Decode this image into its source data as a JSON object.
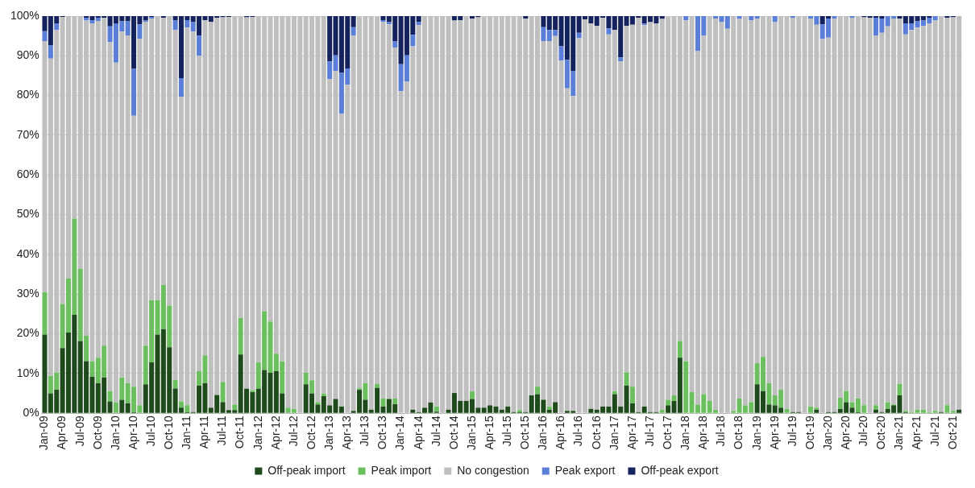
{
  "chart_data": {
    "type": "bar",
    "stacked": true,
    "legend": "bottom",
    "grid": "y",
    "categories": [
      "Jan-09",
      null,
      null,
      "Apr-09",
      null,
      null,
      "Jul-09",
      null,
      null,
      "Oct-09",
      null,
      null,
      "Jan-10",
      null,
      null,
      "Apr-10",
      null,
      null,
      "Jul-10",
      null,
      null,
      "Oct-10",
      null,
      null,
      "Jan-11",
      null,
      null,
      "Apr-11",
      null,
      null,
      "Jul-11",
      null,
      null,
      "Oct-11",
      null,
      null,
      "Jan-12",
      null,
      null,
      "Apr-12",
      null,
      null,
      "Jul-12",
      null,
      null,
      "Oct-12",
      null,
      null,
      "Jan-13",
      null,
      null,
      "Apr-13",
      null,
      null,
      "Jul-13",
      null,
      null,
      "Oct-13",
      null,
      null,
      "Jan-14",
      null,
      null,
      "Apr-14",
      null,
      null,
      "Jul-14",
      null,
      null,
      "Oct-14",
      null,
      null,
      "Jan-15",
      null,
      null,
      "Apr-15",
      null,
      null,
      "Jul-15",
      null,
      null,
      "Oct-15",
      null,
      null,
      "Jan-16",
      null,
      null,
      "Apr-16",
      null,
      null,
      "Jul-16",
      null,
      null,
      "Oct-16",
      null,
      null,
      "Jan-17",
      null,
      null,
      "Apr-17",
      null,
      null,
      "Jul-17",
      null,
      null,
      "Oct-17",
      null,
      null,
      "Jan-18",
      null,
      null,
      "Apr-18",
      null,
      null,
      "Jul-18",
      null,
      null,
      "Oct-18",
      null,
      null,
      "Jan-19",
      null,
      null,
      "Apr-19",
      null,
      null,
      "Jul-19",
      null,
      null,
      "Oct-19",
      null,
      null,
      "Jan-20",
      null,
      null,
      "Apr-20",
      null,
      null,
      "Jul-20",
      null,
      null,
      "Oct-20",
      null,
      null,
      "Jan-21",
      null,
      null,
      "Apr-21",
      null,
      null,
      "Jul-21",
      null,
      null,
      "Oct-21",
      null
    ],
    "ylim": [
      0,
      100
    ],
    "yticks": [
      {
        "value": 0,
        "label": "0%"
      },
      {
        "value": 10,
        "label": "10%"
      },
      {
        "value": 20,
        "label": "20%"
      },
      {
        "value": 30,
        "label": "30%"
      },
      {
        "value": 40,
        "label": "40%"
      },
      {
        "value": 50,
        "label": "50%"
      },
      {
        "value": 60,
        "label": "60%"
      },
      {
        "value": 70,
        "label": "70%"
      },
      {
        "value": 80,
        "label": "80%"
      },
      {
        "value": 90,
        "label": "90%"
      },
      {
        "value": 100,
        "label": "100%"
      }
    ],
    "series": [
      {
        "name": "Off-peak import",
        "color": "#1f4a1c",
        "values": [
          19.8,
          5,
          5.9,
          16.4,
          20.3,
          24.8,
          18.2,
          13.1,
          9.2,
          7.6,
          9,
          3,
          0,
          3.4,
          2.5,
          0.3,
          0,
          7.3,
          12.8,
          19.8,
          21.2,
          16.6,
          6.2,
          1.4,
          0.3,
          0.3,
          7,
          7.6,
          1.4,
          4.6,
          2.8,
          0.8,
          0.8,
          14.8,
          6.2,
          5.3,
          6.2,
          10.9,
          10.2,
          10.6,
          5,
          0,
          0,
          0,
          7.3,
          5,
          2.2,
          4.3,
          2,
          3.6,
          1.7,
          0,
          0.6,
          5.9,
          3.4,
          0.9,
          6.4,
          1.7,
          3.6,
          2.3,
          0,
          0,
          0.9,
          0.3,
          1.4,
          2.7,
          0.4,
          0,
          0.9,
          5.1,
          3.1,
          3.1,
          3.6,
          1.4,
          1.4,
          2,
          1.7,
          0.9,
          1.7,
          0.3,
          0.3,
          0.3,
          4.5,
          4.8,
          3.4,
          0.9,
          2.8,
          0,
          0.6,
          0.6,
          0,
          0,
          1.1,
          0.9,
          1.7,
          1.7,
          4.8,
          1.7,
          7,
          2.5,
          0.3,
          1.7,
          0.3,
          0.3,
          0,
          2,
          3.1,
          14,
          0,
          0,
          0,
          0,
          0,
          0,
          0,
          0,
          0,
          0,
          0,
          0,
          7.3,
          5.6,
          2.2,
          2,
          1.4,
          0,
          0.3,
          0.3,
          0,
          0,
          0.9,
          0,
          0.3,
          0.3,
          1.1,
          2.8,
          1.4,
          0.3,
          0,
          0,
          0.9,
          0.3,
          1.1,
          2,
          4.5,
          0.3,
          0,
          0,
          0,
          0,
          0,
          0.3,
          0,
          0,
          0.9
        ]
      },
      {
        "name": "Peak import",
        "color": "#6cbf5f",
        "values": [
          10.7,
          4.4,
          4.4,
          11.1,
          13.6,
          24.2,
          18.2,
          6.4,
          3.9,
          6.4,
          8,
          2.6,
          2.8,
          5.6,
          5.1,
          6.4,
          2,
          9.7,
          15.7,
          8.7,
          11.1,
          10.5,
          2.2,
          1.6,
          1.7,
          0,
          3.6,
          7,
          0,
          0,
          5.1,
          0,
          1.4,
          9.2,
          0,
          0.5,
          6.6,
          14.8,
          12.9,
          4.4,
          8.1,
          1.4,
          1.1,
          0,
          2.9,
          3.3,
          0.6,
          0.7,
          0,
          0,
          0,
          0,
          0,
          0.4,
          4.2,
          0,
          1,
          2,
          0,
          1.4,
          0,
          0,
          0,
          0,
          0,
          0,
          1.3,
          0,
          0,
          0,
          0,
          0,
          1.9,
          0,
          0,
          0,
          0,
          0,
          0,
          0,
          0.5,
          0,
          0,
          1.9,
          0,
          0.8,
          0,
          0,
          0,
          0,
          0,
          0,
          0,
          0,
          0,
          0,
          0.8,
          0,
          3.3,
          4.2,
          0,
          0,
          0,
          0,
          0.9,
          1.4,
          1.4,
          4.2,
          13.1,
          5.3,
          2.2,
          4.8,
          3.1,
          0.9,
          0,
          0,
          0.6,
          3.7,
          2,
          2.8,
          5.3,
          8.6,
          5.4,
          2.5,
          4.5,
          1.1,
          0,
          0,
          0,
          1.7,
          0.5,
          0,
          0,
          0,
          2.8,
          2.8,
          1.4,
          3.4,
          2,
          0,
          1.1,
          0,
          1.7,
          0.2,
          2.9,
          0.3,
          0.3,
          0.9,
          0.9,
          0.3,
          0.6,
          0,
          2,
          0.6,
          0
        ]
      },
      {
        "name": "No congestion",
        "color": "#bfbfbf",
        "values": [
          63.2,
          79.9,
          86.2,
          72.3,
          66.1,
          51,
          63.6,
          79.4,
          85.1,
          84.8,
          82.6,
          87.9,
          85.5,
          87.1,
          87.5,
          68.2,
          92.3,
          81.6,
          70.9,
          71.5,
          67.3,
          72.9,
          88.1,
          76.7,
          95.1,
          95.8,
          79.4,
          84.4,
          97.2,
          95,
          91.8,
          99,
          97.8,
          76,
          93.5,
          94,
          87.2,
          74.3,
          76.9,
          85,
          86.9,
          98.6,
          98.9,
          100,
          89.8,
          91.7,
          97.2,
          95,
          82.2,
          82.6,
          73.7,
          82.7,
          94.5,
          93.6,
          92.4,
          99.1,
          92.5,
          94.9,
          94.3,
          88.4,
          81.1,
          83.5,
          91.5,
          97.4,
          98.6,
          97.3,
          98.3,
          100,
          99.1,
          93.8,
          95.9,
          96.9,
          93.9,
          98.3,
          98.5,
          98,
          98.3,
          99.1,
          98.3,
          99.7,
          99.2,
          99.1,
          95.5,
          93.3,
          90.3,
          92,
          92.2,
          88.8,
          81.2,
          79.3,
          94.4,
          99.2,
          97.1,
          96.6,
          97.9,
          93.7,
          90.9,
          86.9,
          87.2,
          91.1,
          99.3,
          96,
          98.2,
          97.9,
          98.4,
          96.5,
          95.5,
          81.8,
          85.9,
          94.7,
          89,
          90.3,
          96.9,
          98.5,
          98.5,
          96.8,
          99.4,
          95.6,
          98,
          96.2,
          86.8,
          85.8,
          92.4,
          94,
          94.1,
          98.9,
          99.3,
          99.7,
          100,
          97.7,
          96.4,
          94.2,
          94.3,
          99.1,
          96.1,
          94.4,
          96.8,
          96.3,
          97.7,
          99.6,
          93.1,
          95.5,
          94.6,
          97.2,
          92,
          94.8,
          96.2,
          96.2,
          96.6,
          97.9,
          98.4,
          99.7,
          97.6,
          99.1,
          99.1
        ]
      },
      {
        "name": "Peak export",
        "color": "#5b7fd8",
        "values": [
          2.5,
          3.3,
          1.7,
          0,
          0,
          0,
          0,
          0.7,
          0.8,
          0.8,
          0,
          3.9,
          9.9,
          2.6,
          3.6,
          11.8,
          3.6,
          0.3,
          0.4,
          0,
          0,
          0,
          2.5,
          4.7,
          1.9,
          2.4,
          5.1,
          0,
          0,
          0,
          0,
          0,
          0,
          0,
          0,
          0,
          0,
          0,
          0,
          0,
          0,
          0,
          0,
          0,
          0,
          0,
          0,
          0,
          4.4,
          3.9,
          10.3,
          4.1,
          2.1,
          0,
          0,
          0,
          0,
          0.4,
          0.6,
          1.5,
          6.8,
          6.6,
          2.9,
          0.8,
          0,
          0,
          0,
          0,
          0,
          0,
          0,
          0,
          0,
          0,
          0,
          0,
          0,
          0,
          0,
          0,
          0,
          0,
          0,
          0,
          3.5,
          2.8,
          1.5,
          3.6,
          7.2,
          6.2,
          1.4,
          0,
          0,
          0,
          0,
          1.5,
          0,
          1,
          0,
          0,
          0,
          0.4,
          0,
          0,
          0,
          0,
          0,
          0,
          1,
          0,
          8.8,
          4.9,
          0,
          0.6,
          1.5,
          3.2,
          0,
          0.7,
          0,
          1,
          0.6,
          0,
          0,
          1.5,
          0,
          0,
          0.4,
          0,
          0,
          0.6,
          2.2,
          3.7,
          4.8,
          0.6,
          0,
          0,
          0.4,
          0,
          0,
          0,
          4.5,
          3.6,
          2.6,
          0.6,
          0,
          2.8,
          1.7,
          1.6,
          1.4,
          1.4,
          1,
          0,
          0,
          0,
          0
        ]
      },
      {
        "name": "Off-peak export",
        "color": "#14235e",
        "values": [
          3.8,
          7.4,
          1.8,
          0.2,
          0,
          0,
          0,
          0.4,
          1,
          0.4,
          0.4,
          2.6,
          1.8,
          1.3,
          1.3,
          13.3,
          2.1,
          1.1,
          0.2,
          0,
          0.4,
          0,
          1,
          15.6,
          1,
          1.5,
          4.9,
          1,
          1.4,
          0.4,
          0.3,
          0.2,
          0,
          0,
          0.3,
          0.2,
          0,
          0,
          0,
          0,
          0,
          0,
          0,
          0,
          0,
          0,
          0,
          0,
          11.4,
          9.9,
          14.3,
          13.2,
          2.8,
          null,
          0,
          0,
          null,
          1,
          1.5,
          6.4,
          12.1,
          9.9,
          4.7,
          1.5,
          0,
          0,
          0,
          0,
          0,
          1.1,
          1,
          0,
          0.6,
          0.3,
          null,
          0,
          0,
          0,
          0,
          0,
          0,
          0.6,
          0,
          0,
          2.8,
          3.5,
          3.5,
          7.6,
          11,
          13.9,
          4.2,
          0.8,
          1.8,
          2.5,
          0.4,
          3.1,
          3.5,
          10.4,
          2.5,
          2.2,
          0.4,
          1.9,
          1.5,
          1.8,
          0.7,
          null,
          0,
          0,
          0,
          0,
          0,
          0,
          0,
          0,
          0,
          0,
          0,
          0,
          0,
          0,
          0,
          0,
          0,
          0,
          0,
          0,
          0,
          0,
          0,
          0,
          0,
          2.1,
          0.6,
          0,
          0,
          0,
          0,
          0,
          0.3,
          0.4,
          0.4,
          0.6,
          0,
          0,
          0.6,
          1.8,
          1.8,
          1.3,
          1.1,
          0.4,
          0,
          0,
          0.4,
          0.3,
          0
        ]
      }
    ]
  }
}
